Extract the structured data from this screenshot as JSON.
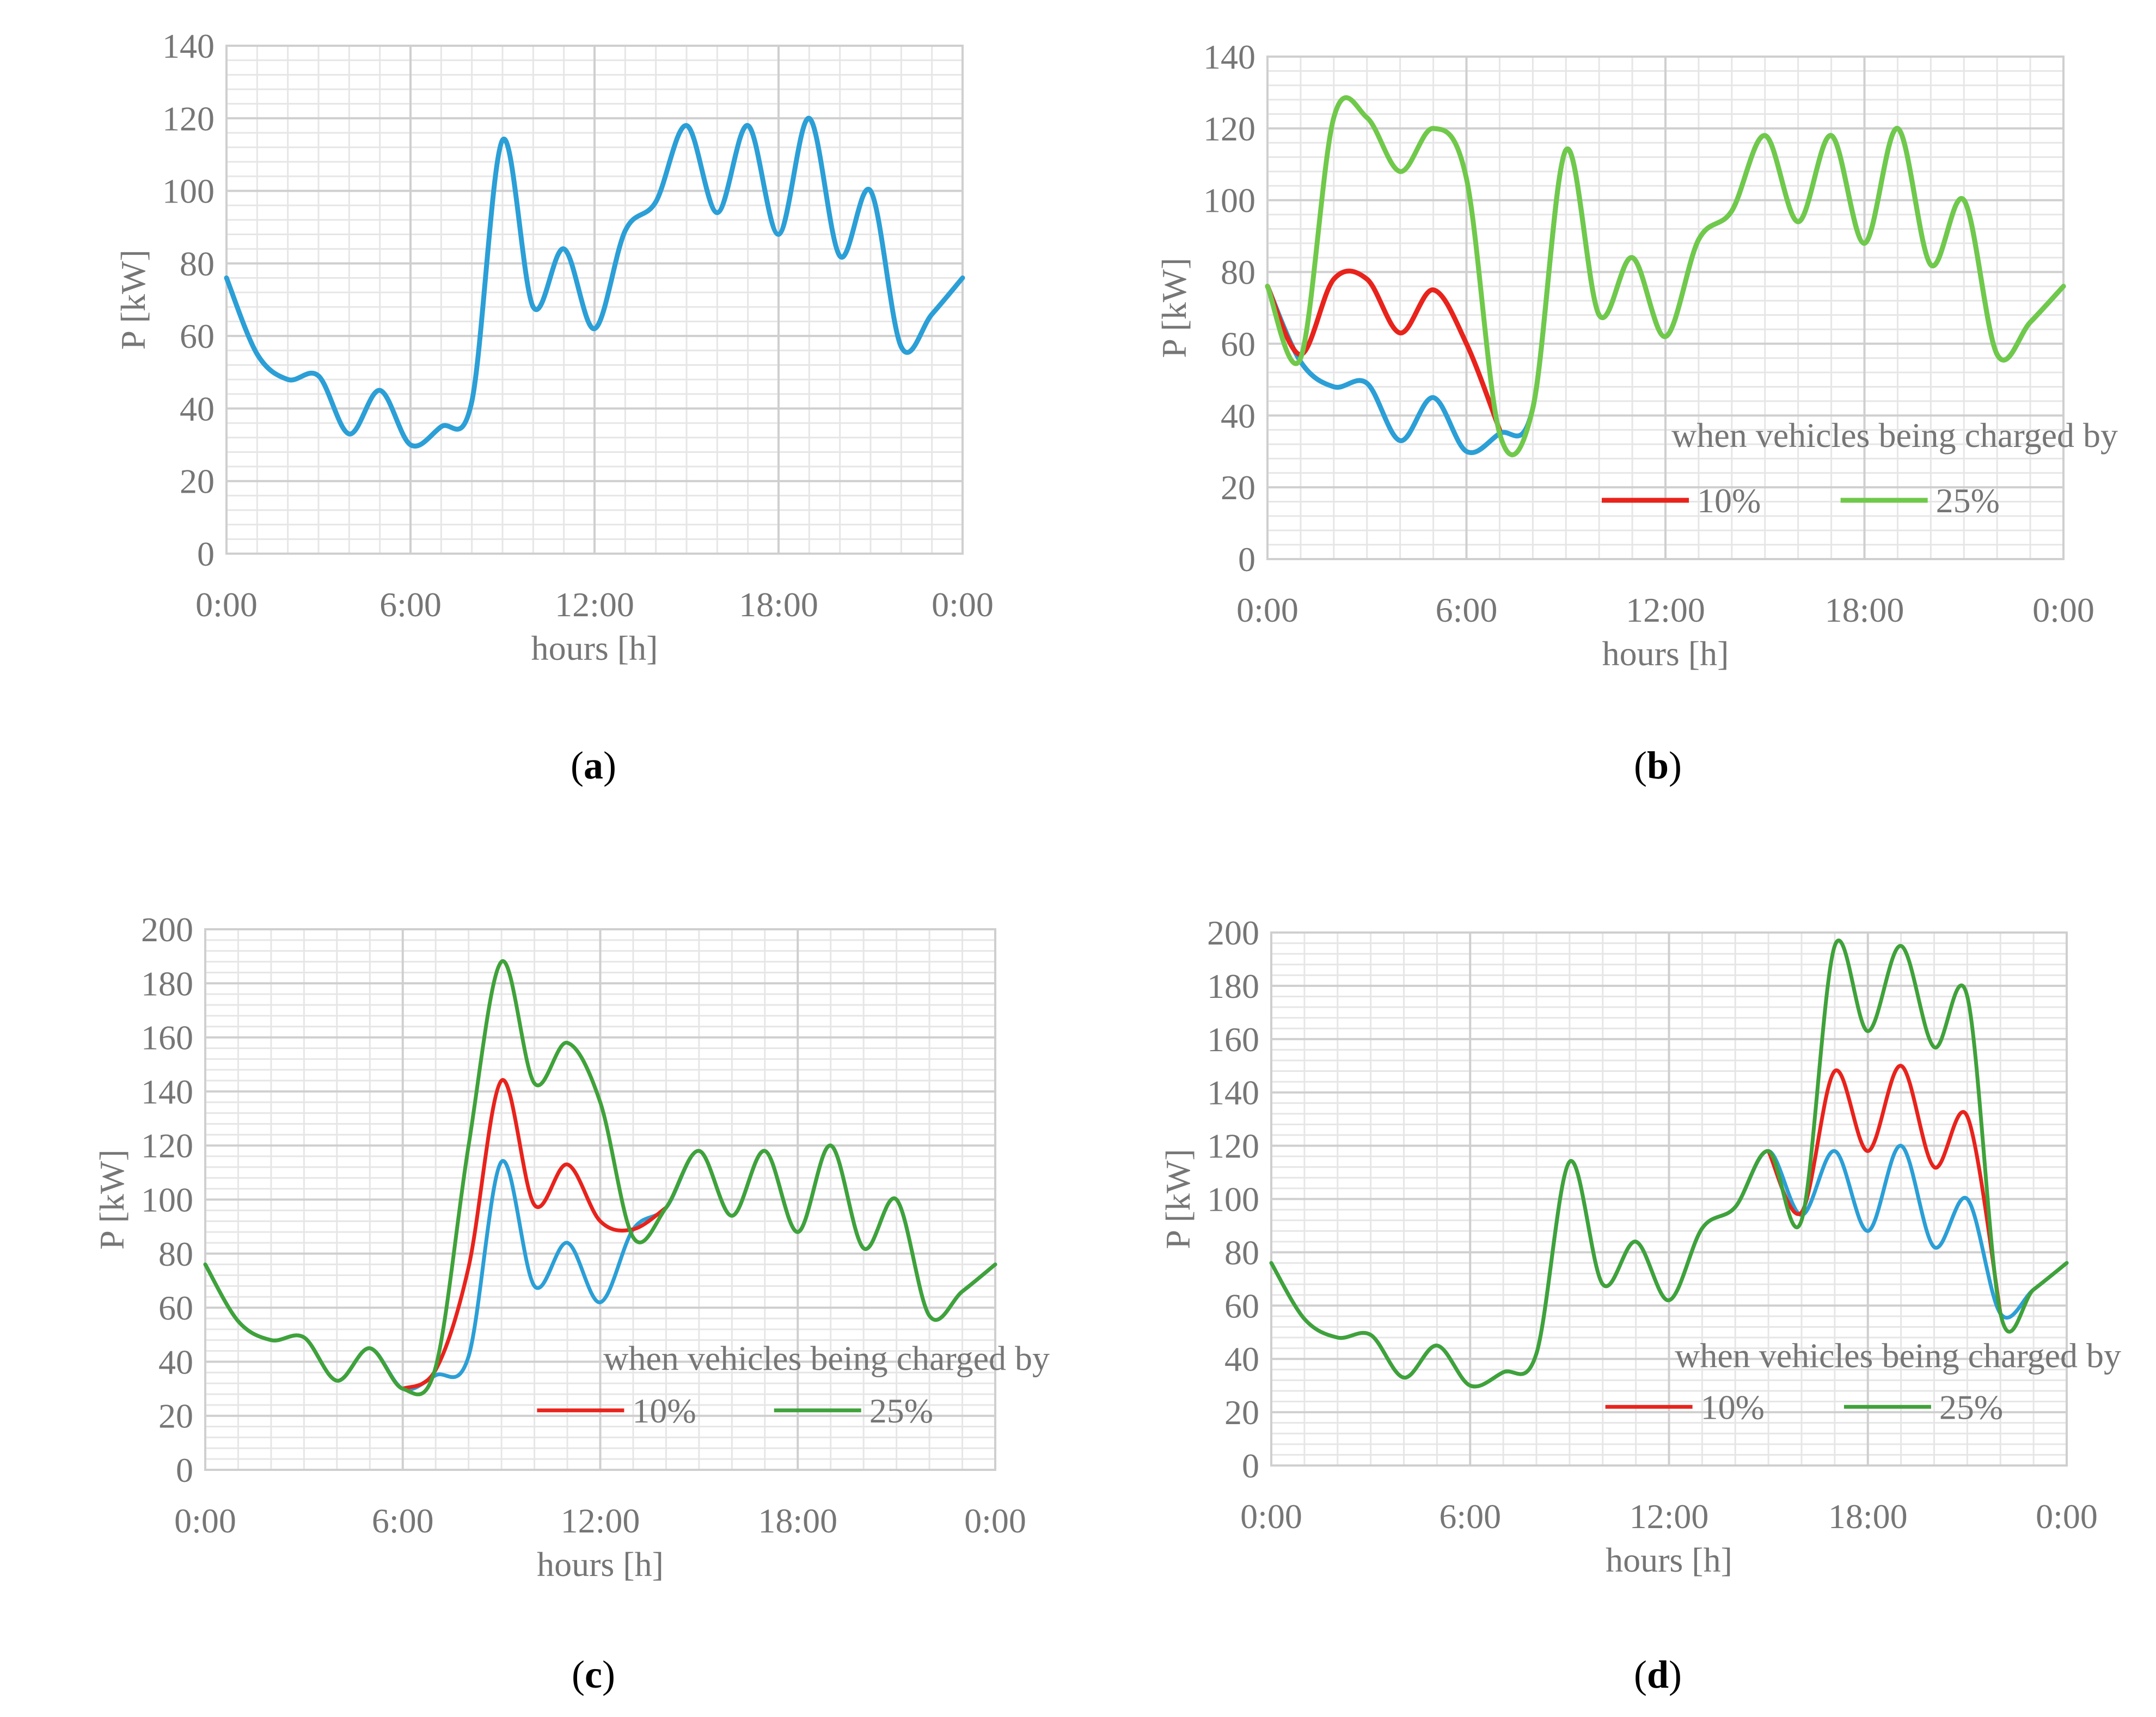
{
  "colors": {
    "base": "#2b9fd6",
    "pct10": "#e8231c",
    "pct25_b": "#70c94a",
    "pct25_cd": "#3fa23a",
    "grid_major": "#cfcfcf",
    "grid_minor": "#e6e6e6",
    "text": "#767676"
  },
  "chart_data": [
    {
      "id": "a",
      "panel_label": "a",
      "type": "line",
      "xlabel": "hours [h]",
      "ylabel": "P [kW]",
      "ylim": [
        0,
        140
      ],
      "yticks": [
        0,
        20,
        40,
        60,
        80,
        100,
        120,
        140
      ],
      "xlim": [
        0,
        24
      ],
      "xtick_values": [
        0,
        6,
        12,
        18,
        24
      ],
      "xtick_labels": [
        "0:00",
        "6:00",
        "12:00",
        "18:00",
        "0:00"
      ],
      "legend": null,
      "series": [
        {
          "name": "base",
          "color_key": "base",
          "x": [
            0,
            1,
            2,
            3,
            4,
            5,
            6,
            7,
            8,
            9,
            10,
            11,
            12,
            13,
            14,
            15,
            16,
            17,
            18,
            19,
            20,
            21,
            22,
            23,
            24
          ],
          "y": [
            76,
            55,
            48,
            49,
            33,
            45,
            30,
            35,
            42,
            114,
            68,
            84,
            62,
            89,
            97,
            118,
            94,
            118,
            88,
            120,
            82,
            100,
            57,
            66,
            76
          ]
        }
      ]
    },
    {
      "id": "b",
      "panel_label": "b",
      "type": "line",
      "xlabel": "hours [h]",
      "ylabel": "P [kW]",
      "ylim": [
        0,
        140
      ],
      "yticks": [
        0,
        20,
        40,
        60,
        80,
        100,
        120,
        140
      ],
      "xlim": [
        0,
        24
      ],
      "xtick_values": [
        0,
        6,
        12,
        18,
        24
      ],
      "xtick_labels": [
        "0:00",
        "6:00",
        "12:00",
        "18:00",
        "0:00"
      ],
      "legend": {
        "title": "when vehicles being charged by",
        "items": [
          "10%",
          "25%"
        ],
        "placement": "bottom-right"
      },
      "series": [
        {
          "name": "base",
          "color_key": "base",
          "x": [
            0,
            1,
            2,
            3,
            4,
            5,
            6,
            7,
            8,
            9,
            10,
            11,
            12,
            13,
            14,
            15,
            16,
            17,
            18,
            19,
            20,
            21,
            22,
            23,
            24
          ],
          "y": [
            76,
            55,
            48,
            49,
            33,
            45,
            30,
            35,
            42,
            114,
            68,
            84,
            62,
            89,
            97,
            118,
            94,
            118,
            88,
            120,
            82,
            100,
            57,
            66,
            76
          ]
        },
        {
          "name": "10%",
          "color_key": "pct10",
          "x": [
            0,
            1,
            2,
            3,
            4,
            5,
            6,
            7
          ],
          "y": [
            76,
            57,
            78,
            78,
            63,
            75,
            60,
            36
          ]
        },
        {
          "name": "25%",
          "color_key": "pct25_b",
          "x": [
            0,
            1,
            2,
            3,
            4,
            5,
            6,
            7,
            8,
            9,
            10,
            11,
            12,
            13,
            14,
            15,
            16,
            17,
            18,
            19,
            20,
            21,
            22,
            23,
            24
          ],
          "y": [
            76,
            56,
            123,
            123,
            108,
            120,
            106,
            35,
            42,
            114,
            68,
            84,
            62,
            89,
            97,
            118,
            94,
            118,
            88,
            120,
            82,
            100,
            57,
            66,
            76
          ]
        }
      ]
    },
    {
      "id": "c",
      "panel_label": "c",
      "type": "line",
      "xlabel": "hours [h]",
      "ylabel": "P [kW]",
      "ylim": [
        0,
        200
      ],
      "yticks": [
        0,
        20,
        40,
        60,
        80,
        100,
        120,
        140,
        160,
        180,
        200
      ],
      "xlim": [
        0,
        24
      ],
      "xtick_values": [
        0,
        6,
        12,
        18,
        24
      ],
      "xtick_labels": [
        "0:00",
        "6:00",
        "12:00",
        "18:00",
        "0:00"
      ],
      "legend": {
        "title": "when vehicles being charged by",
        "items": [
          "10%",
          "25%"
        ],
        "placement": "bottom-right"
      },
      "series": [
        {
          "name": "base",
          "color_key": "base",
          "x": [
            0,
            1,
            2,
            3,
            4,
            5,
            6,
            7,
            8,
            9,
            10,
            11,
            12,
            13,
            14,
            15,
            16,
            17,
            18,
            19,
            20,
            21,
            22,
            23,
            24
          ],
          "y": [
            76,
            55,
            48,
            49,
            33,
            45,
            30,
            35,
            42,
            114,
            68,
            84,
            62,
            89,
            97,
            118,
            94,
            118,
            88,
            120,
            82,
            100,
            57,
            66,
            76
          ]
        },
        {
          "name": "10%",
          "color_key": "pct10",
          "x": [
            6,
            7,
            8,
            9,
            10,
            11,
            12,
            13,
            14
          ],
          "y": [
            30,
            37,
            75,
            144,
            98,
            113,
            92,
            89,
            97
          ]
        },
        {
          "name": "25%",
          "color_key": "pct25_cd",
          "x": [
            0,
            1,
            2,
            3,
            4,
            5,
            6,
            7,
            8,
            9,
            10,
            11,
            12,
            13,
            14,
            15,
            16,
            17,
            18,
            19,
            20,
            21,
            22,
            23,
            24
          ],
          "y": [
            76,
            55,
            48,
            49,
            33,
            45,
            30,
            38,
            120,
            188,
            143,
            158,
            136,
            86,
            97,
            118,
            94,
            118,
            88,
            120,
            82,
            100,
            57,
            66,
            76
          ]
        }
      ]
    },
    {
      "id": "d",
      "panel_label": "d",
      "type": "line",
      "xlabel": "hours [h]",
      "ylabel": "P [kW]",
      "ylim": [
        0,
        200
      ],
      "yticks": [
        0,
        20,
        40,
        60,
        80,
        100,
        120,
        140,
        160,
        180,
        200
      ],
      "xlim": [
        0,
        24
      ],
      "xtick_values": [
        0,
        6,
        12,
        18,
        24
      ],
      "xtick_labels": [
        "0:00",
        "6:00",
        "12:00",
        "18:00",
        "0:00"
      ],
      "legend": {
        "title": "when vehicles being charged by",
        "items": [
          "10%",
          "25%"
        ],
        "placement": "bottom-right"
      },
      "series": [
        {
          "name": "base",
          "color_key": "base",
          "x": [
            0,
            1,
            2,
            3,
            4,
            5,
            6,
            7,
            8,
            9,
            10,
            11,
            12,
            13,
            14,
            15,
            16,
            17,
            18,
            19,
            20,
            21,
            22,
            23,
            24
          ],
          "y": [
            76,
            55,
            48,
            49,
            33,
            45,
            30,
            35,
            42,
            114,
            68,
            84,
            62,
            89,
            97,
            118,
            94,
            118,
            88,
            120,
            82,
            100,
            57,
            66,
            76
          ]
        },
        {
          "name": "10%",
          "color_key": "pct10",
          "x": [
            15,
            16,
            17,
            18,
            19,
            20,
            21,
            22
          ],
          "y": [
            118,
            95,
            148,
            118,
            150,
            112,
            131,
            57
          ]
        },
        {
          "name": "25%",
          "color_key": "pct25_cd",
          "x": [
            0,
            1,
            2,
            3,
            4,
            5,
            6,
            7,
            8,
            9,
            10,
            11,
            12,
            13,
            14,
            15,
            16,
            17,
            18,
            19,
            20,
            21,
            22,
            23,
            24
          ],
          "y": [
            76,
            55,
            48,
            49,
            33,
            45,
            30,
            35,
            42,
            114,
            68,
            84,
            62,
            89,
            97,
            118,
            92,
            195,
            163,
            195,
            157,
            176,
            57,
            66,
            76
          ]
        }
      ]
    }
  ]
}
